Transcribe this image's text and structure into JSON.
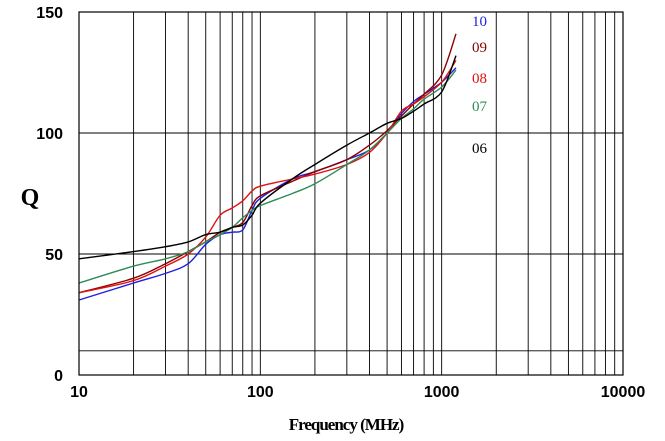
{
  "chart_data": {
    "type": "line",
    "title": "",
    "xlabel": "Frequency (MHz)",
    "ylabel": "Q",
    "x_scale": "log",
    "xlim": [
      10,
      10000
    ],
    "ylim": [
      0,
      150
    ],
    "x_ticks": [
      10,
      100,
      1000,
      10000
    ],
    "x_tick_labels": [
      "10",
      "100",
      "1000",
      "10000"
    ],
    "y_ticks": [
      0,
      50,
      100,
      150
    ],
    "y_tick_labels": [
      "0",
      "50",
      "100",
      "150"
    ],
    "grid": true,
    "extra_hlines": [
      10
    ],
    "series": [
      {
        "name": "10",
        "color": "#1f1fe0",
        "x": [
          10,
          20,
          30,
          40,
          50,
          60,
          70,
          80,
          90,
          100,
          150,
          200,
          300,
          400,
          500,
          600,
          700,
          800,
          1000,
          1200
        ],
        "y": [
          31,
          38,
          42,
          46,
          54,
          58,
          59,
          60,
          68,
          73,
          81,
          84,
          89,
          93,
          100,
          108,
          113,
          116,
          121,
          127
        ]
      },
      {
        "name": "09",
        "color": "#8b0000",
        "x": [
          10,
          20,
          30,
          40,
          50,
          60,
          70,
          80,
          90,
          100,
          150,
          200,
          300,
          400,
          500,
          600,
          700,
          800,
          1000,
          1200
        ],
        "y": [
          34,
          40,
          46,
          51,
          55,
          59,
          61,
          63,
          70,
          74,
          80,
          84,
          89,
          95,
          101,
          107,
          112,
          116,
          124,
          141
        ]
      },
      {
        "name": "08",
        "color": "#e01010",
        "x": [
          10,
          20,
          30,
          40,
          50,
          60,
          70,
          80,
          90,
          100,
          150,
          200,
          300,
          400,
          500,
          600,
          700,
          800,
          1000,
          1200
        ],
        "y": [
          34,
          39,
          45,
          50,
          57,
          66,
          69,
          72,
          76,
          78,
          81,
          83,
          87,
          92,
          100,
          109,
          112,
          115,
          121,
          130
        ]
      },
      {
        "name": "07",
        "color": "#2e8b57",
        "x": [
          10,
          20,
          30,
          40,
          50,
          60,
          70,
          80,
          90,
          100,
          150,
          200,
          300,
          400,
          500,
          600,
          700,
          800,
          1000,
          1200
        ],
        "y": [
          38,
          45,
          48,
          51,
          55,
          58,
          61,
          65,
          68,
          70,
          75,
          79,
          87,
          93,
          100,
          106,
          110,
          114,
          119,
          126
        ]
      },
      {
        "name": "06",
        "color": "#000000",
        "x": [
          10,
          20,
          30,
          40,
          50,
          60,
          70,
          80,
          90,
          100,
          150,
          200,
          300,
          400,
          500,
          600,
          700,
          800,
          1000,
          1200
        ],
        "y": [
          48,
          51,
          53,
          55,
          58,
          59,
          61,
          62,
          66,
          71,
          81,
          87,
          95,
          100,
          104,
          106,
          109,
          112,
          117,
          132
        ]
      }
    ]
  }
}
